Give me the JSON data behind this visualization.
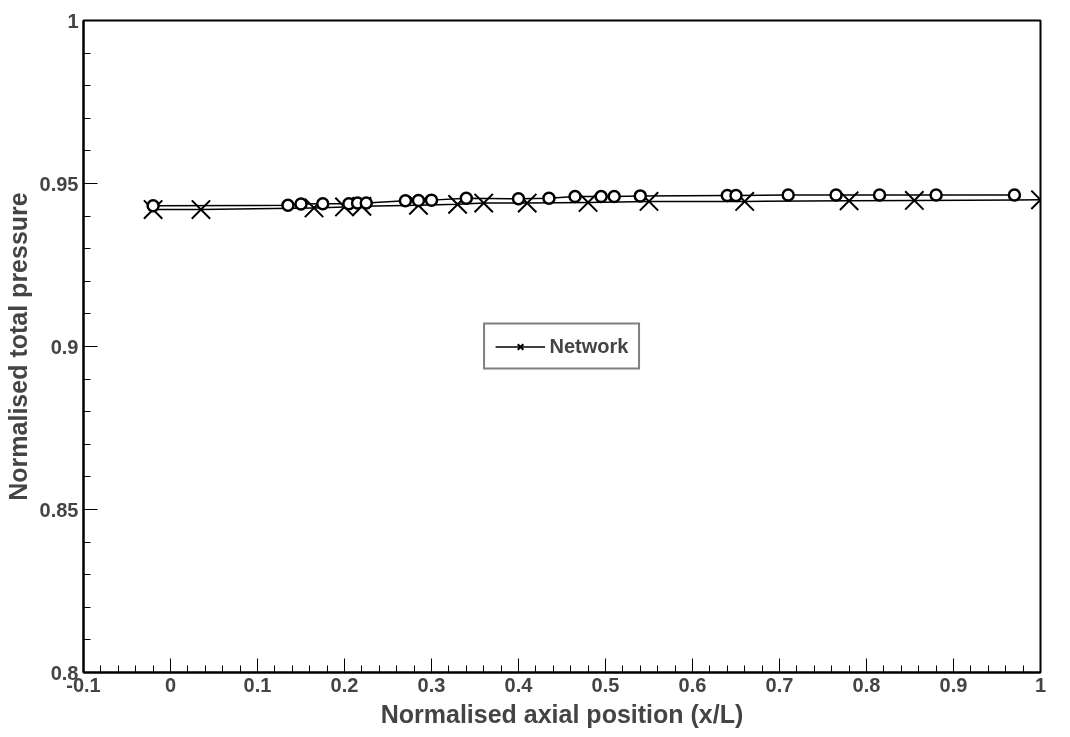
{
  "chart_data": {
    "type": "line",
    "xlabel": "Normalised axial position (x/L)",
    "ylabel": "Normalised total pressure",
    "xlim": [
      -0.1,
      1.0
    ],
    "xticks": [
      -0.1,
      0,
      0.1,
      0.2,
      0.3,
      0.4,
      0.5,
      0.6,
      0.7,
      0.8,
      0.9,
      1
    ],
    "ylim": [
      0.8,
      1.0
    ],
    "yticks": [
      0.8,
      0.85,
      0.9,
      0.95,
      1
    ],
    "grid": false,
    "legend": "center",
    "series": [
      {
        "color": "#000000",
        "marker": "circle",
        "x": [
          -0.02,
          0.135,
          0.15,
          0.175,
          0.205,
          0.215,
          0.225,
          0.27,
          0.285,
          0.3,
          0.34,
          0.4,
          0.435,
          0.465,
          0.495,
          0.51,
          0.54,
          0.64,
          0.65,
          0.71,
          0.765,
          0.815,
          0.88,
          0.97
        ],
        "values": [
          0.9432,
          0.9433,
          0.9437,
          0.9438,
          0.9438,
          0.944,
          0.944,
          0.9447,
          0.9448,
          0.9449,
          0.9455,
          0.9453,
          0.9455,
          0.946,
          0.946,
          0.946,
          0.9462,
          0.9463,
          0.9463,
          0.9465,
          0.9465,
          0.9465,
          0.9465,
          0.9465
        ]
      },
      {
        "name": "Network",
        "color": "#000000",
        "marker": "cross",
        "x": [
          -0.02,
          0.035,
          0.165,
          0.2,
          0.22,
          0.285,
          0.33,
          0.36,
          0.41,
          0.48,
          0.55,
          0.66,
          0.78,
          0.855,
          1.0
        ],
        "values": [
          0.942,
          0.942,
          0.9425,
          0.9428,
          0.943,
          0.9433,
          0.9436,
          0.944,
          0.944,
          0.9442,
          0.9445,
          0.9445,
          0.9447,
          0.9448,
          0.945
        ]
      }
    ]
  }
}
